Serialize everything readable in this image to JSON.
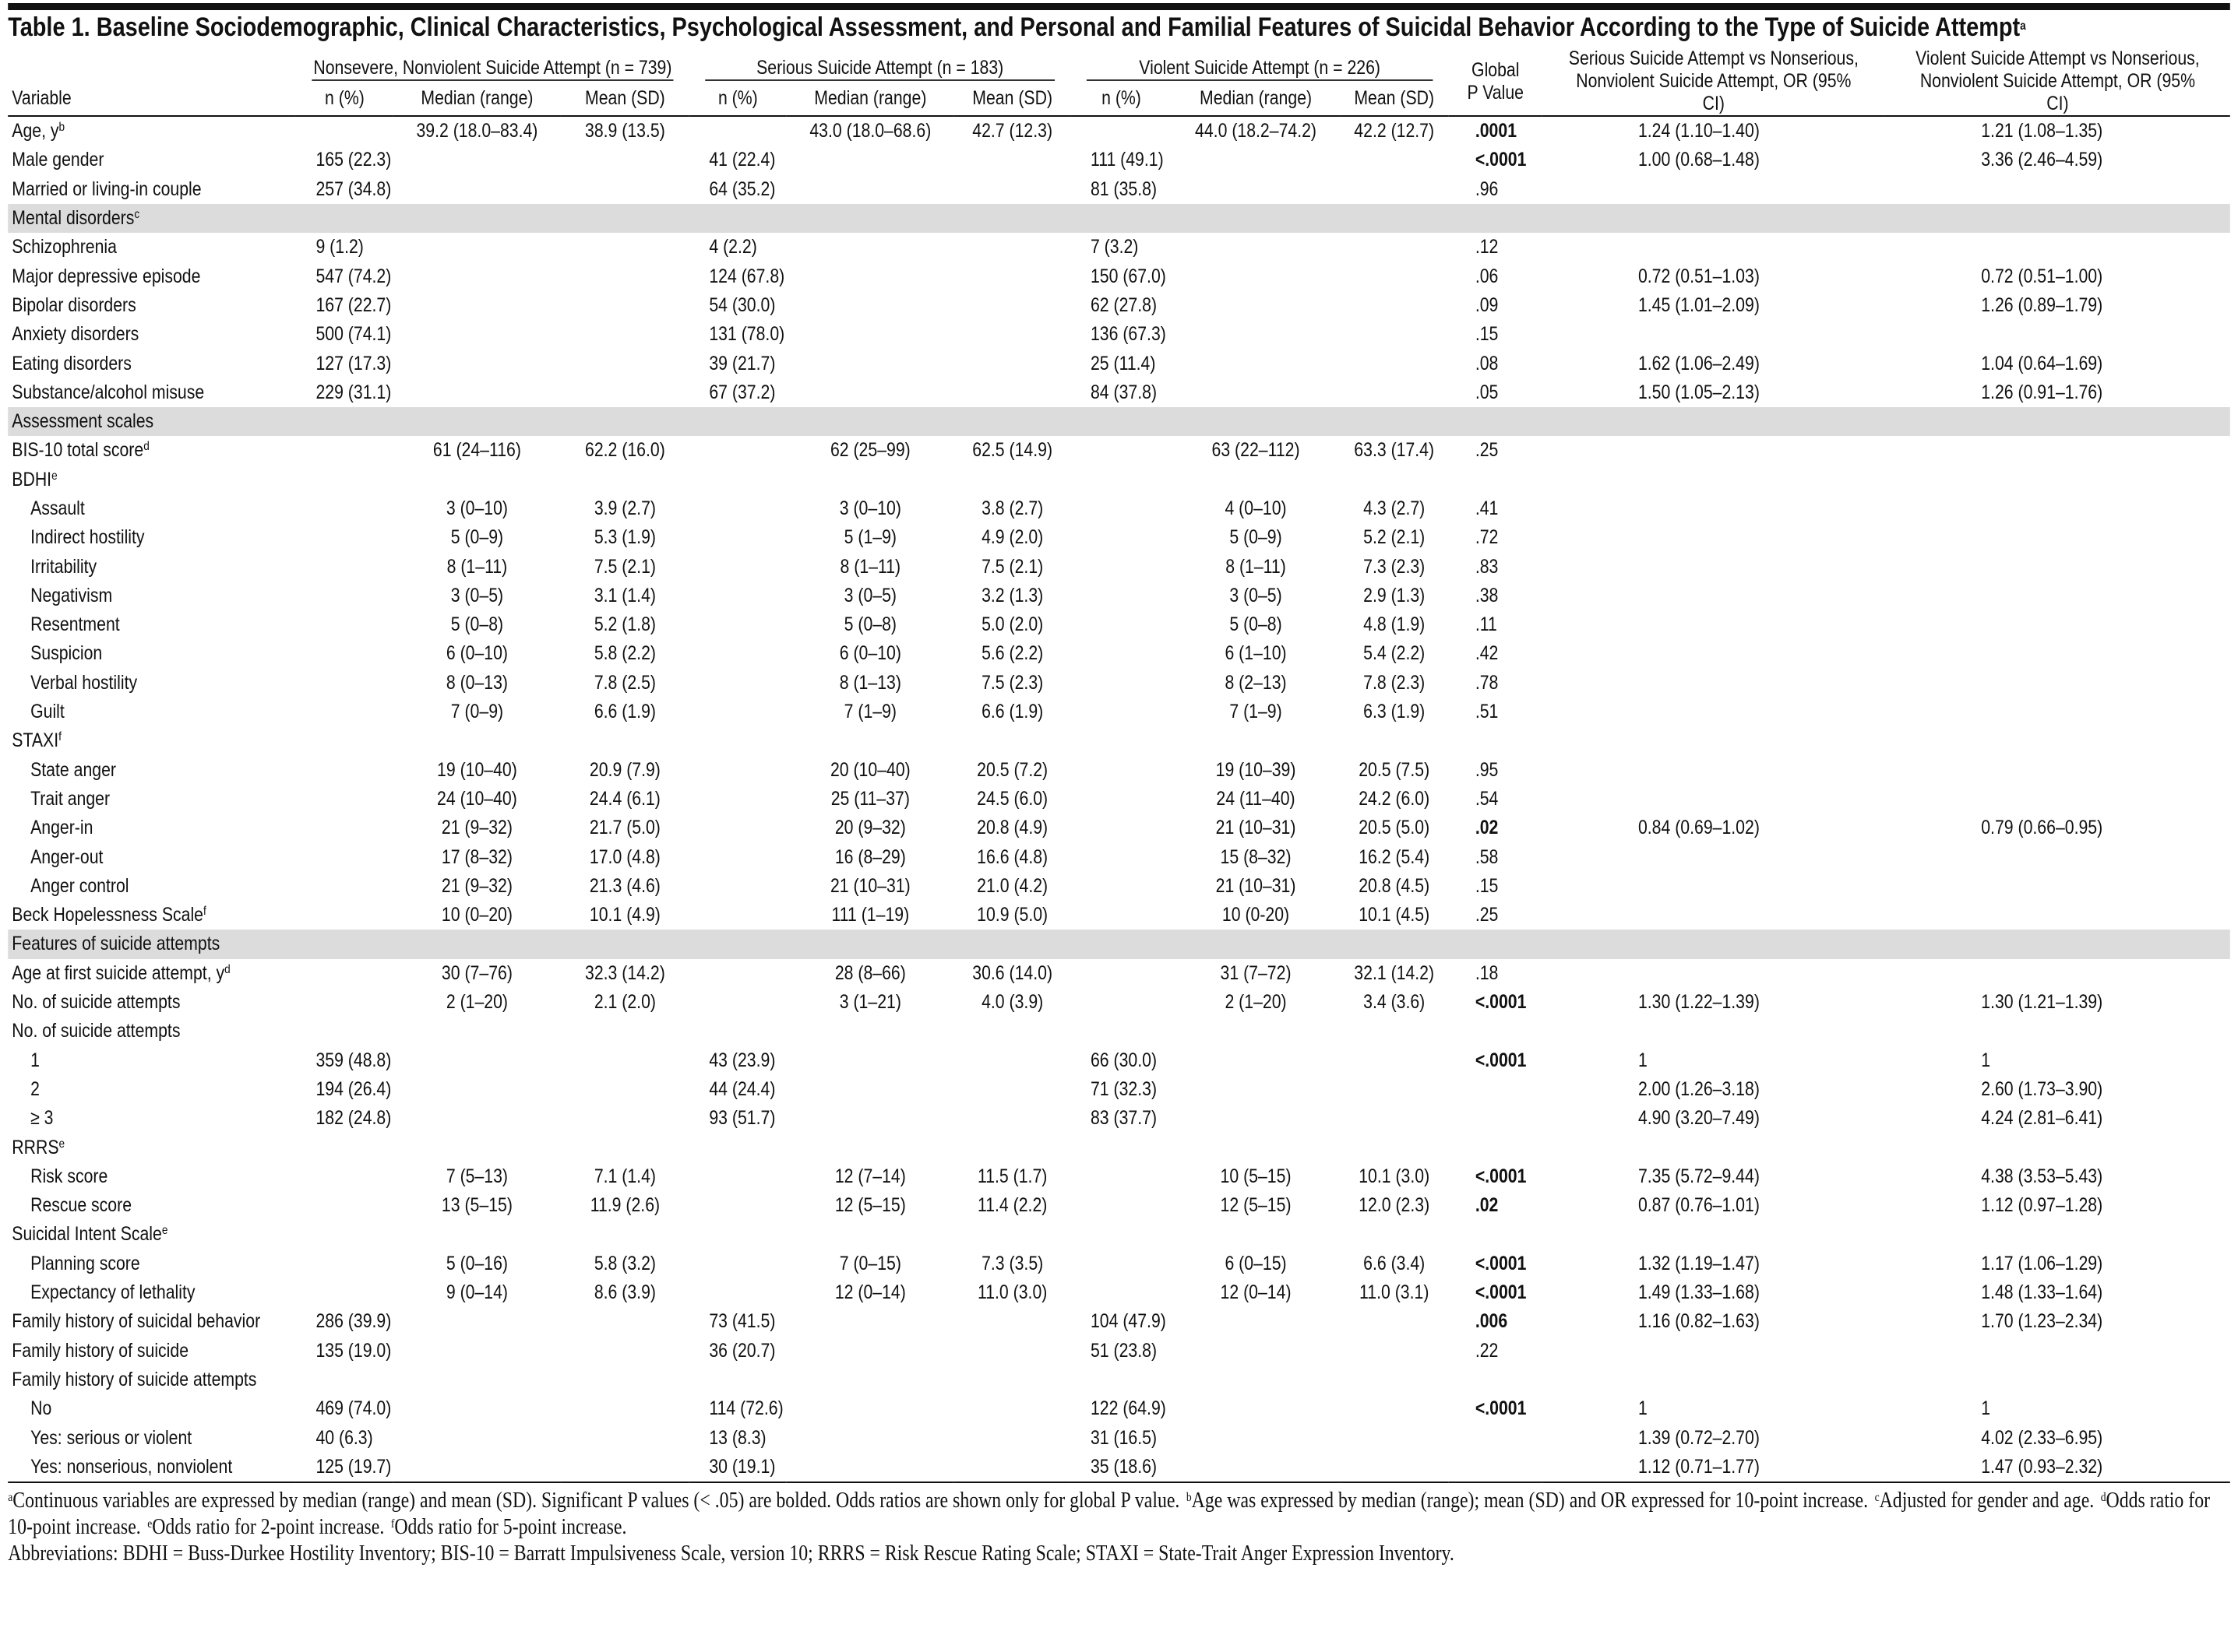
{
  "title": "Table 1. Baseline Sociodemographic, Clinical Characteristics, Psychological Assessment, and Personal and Familial Features of Suicidal Behavior According to the Type of Suicide Attempt",
  "title_note": "a",
  "table": {
    "variable_header": "Variable",
    "groups": [
      {
        "name": "Nonsevere, Nonviolent Suicide Attempt (n = 739)",
        "columns": [
          "n (%)",
          "Median (range)",
          "Mean (SD)"
        ]
      },
      {
        "name": "Serious Suicide Attempt (n = 183)",
        "columns": [
          "n (%)",
          "Median (range)",
          "Mean (SD)"
        ]
      },
      {
        "name": "Violent Suicide Attempt (n = 226)",
        "columns": [
          "n (%)",
          "Median (range)",
          "Mean (SD)"
        ]
      }
    ],
    "p_header": "Global P Value",
    "or_headers": [
      "Serious Suicide Attempt vs Nonserious, Nonviolent Suicide Attempt, OR (95% CI)",
      "Violent Suicide Attempt vs Nonserious, Nonviolent Suicide Attempt, OR (95% CI)"
    ],
    "rows": [
      {
        "label": "Age, y",
        "note": "b",
        "p_bold": true,
        "cells": [
          null,
          "39.2 (18.0–83.4)",
          "38.9 (13.5)",
          null,
          "43.0 (18.0–68.6)",
          "42.7 (12.3)",
          null,
          "44.0 (18.2–74.2)",
          "42.2 (12.7)",
          ".0001",
          "1.24 (1.10–1.40)",
          "1.21 (1.08–1.35)"
        ]
      },
      {
        "label": "Male gender",
        "p_bold": true,
        "cells": [
          "165 (22.3)",
          null,
          null,
          "41 (22.4)",
          null,
          null,
          "111 (49.1)",
          null,
          null,
          "<.0001",
          "1.00 (0.68–1.48)",
          "3.36 (2.46–4.59)"
        ]
      },
      {
        "label": "Married or living-in couple",
        "cells": [
          "257 (34.8)",
          null,
          null,
          "64 (35.2)",
          null,
          null,
          "81 (35.8)",
          null,
          null,
          ".96",
          null,
          null
        ]
      },
      {
        "label": "Mental disorders",
        "note": "c",
        "kind": "section"
      },
      {
        "label": "Schizophrenia",
        "cells": [
          "9 (1.2)",
          null,
          null,
          "4 (2.2)",
          null,
          null,
          "7 (3.2)",
          null,
          null,
          ".12",
          null,
          null
        ]
      },
      {
        "label": "Major depressive episode",
        "cells": [
          "547 (74.2)",
          null,
          null,
          "124 (67.8)",
          null,
          null,
          "150 (67.0)",
          null,
          null,
          ".06",
          "0.72 (0.51–1.03)",
          "0.72 (0.51–1.00)"
        ]
      },
      {
        "label": "Bipolar disorders",
        "cells": [
          "167 (22.7)",
          null,
          null,
          "54 (30.0)",
          null,
          null,
          "62 (27.8)",
          null,
          null,
          ".09",
          "1.45 (1.01–2.09)",
          "1.26 (0.89–1.79)"
        ]
      },
      {
        "label": "Anxiety disorders",
        "cells": [
          "500 (74.1)",
          null,
          null,
          "131 (78.0)",
          null,
          null,
          "136 (67.3)",
          null,
          null,
          ".15",
          null,
          null
        ]
      },
      {
        "label": "Eating disorders",
        "cells": [
          "127 (17.3)",
          null,
          null,
          "39 (21.7)",
          null,
          null,
          "25 (11.4)",
          null,
          null,
          ".08",
          "1.62 (1.06–2.49)",
          "1.04 (0.64–1.69)"
        ]
      },
      {
        "label": "Substance/alcohol misuse",
        "cells": [
          "229 (31.1)",
          null,
          null,
          "67 (37.2)",
          null,
          null,
          "84 (37.8)",
          null,
          null,
          ".05",
          "1.50 (1.05–2.13)",
          "1.26 (0.91–1.76)"
        ]
      },
      {
        "label": "Assessment scales",
        "kind": "section"
      },
      {
        "label": "BIS-10 total score",
        "note": "d",
        "cells": [
          null,
          "61 (24–116)",
          "62.2 (16.0)",
          null,
          "62 (25–99)",
          "62.5 (14.9)",
          null,
          "63 (22–112)",
          "63.3 (17.4)",
          ".25",
          null,
          null
        ]
      },
      {
        "label": "BDHI",
        "note": "e"
      },
      {
        "label": "Assault",
        "kind": "indent",
        "cells": [
          null,
          "3 (0–10)",
          "3.9 (2.7)",
          null,
          "3 (0–10)",
          "3.8 (2.7)",
          null,
          "4 (0–10)",
          "4.3 (2.7)",
          ".41",
          null,
          null
        ]
      },
      {
        "label": "Indirect hostility",
        "kind": "indent",
        "cells": [
          null,
          "5 (0–9)",
          "5.3 (1.9)",
          null,
          "5 (1–9)",
          "4.9 (2.0)",
          null,
          "5 (0–9)",
          "5.2 (2.1)",
          ".72",
          null,
          null
        ]
      },
      {
        "label": "Irritability",
        "kind": "indent",
        "cells": [
          null,
          "8 (1–11)",
          "7.5 (2.1)",
          null,
          "8 (1–11)",
          "7.5 (2.1)",
          null,
          "8 (1–11)",
          "7.3 (2.3)",
          ".83",
          null,
          null
        ]
      },
      {
        "label": "Negativism",
        "kind": "indent",
        "cells": [
          null,
          "3 (0–5)",
          "3.1 (1.4)",
          null,
          "3 (0–5)",
          "3.2 (1.3)",
          null,
          "3 (0–5)",
          "2.9 (1.3)",
          ".38",
          null,
          null
        ]
      },
      {
        "label": "Resentment",
        "kind": "indent",
        "cells": [
          null,
          "5 (0–8)",
          "5.2 (1.8)",
          null,
          "5 (0–8)",
          "5.0 (2.0)",
          null,
          "5 (0–8)",
          "4.8 (1.9)",
          ".11",
          null,
          null
        ]
      },
      {
        "label": "Suspicion",
        "kind": "indent",
        "cells": [
          null,
          "6 (0–10)",
          "5.8 (2.2)",
          null,
          "6 (0–10)",
          "5.6 (2.2)",
          null,
          "6 (1–10)",
          "5.4 (2.2)",
          ".42",
          null,
          null
        ]
      },
      {
        "label": "Verbal hostility",
        "kind": "indent",
        "cells": [
          null,
          "8 (0–13)",
          "7.8 (2.5)",
          null,
          "8 (1–13)",
          "7.5 (2.3)",
          null,
          "8 (2–13)",
          "7.8 (2.3)",
          ".78",
          null,
          null
        ]
      },
      {
        "label": "Guilt",
        "kind": "indent",
        "cells": [
          null,
          "7 (0–9)",
          "6.6 (1.9)",
          null,
          "7 (1–9)",
          "6.6 (1.9)",
          null,
          "7 (1–9)",
          "6.3 (1.9)",
          ".51",
          null,
          null
        ]
      },
      {
        "label": "STAXI",
        "note": "f"
      },
      {
        "label": "State anger",
        "kind": "indent",
        "cells": [
          null,
          "19 (10–40)",
          "20.9 (7.9)",
          null,
          "20 (10–40)",
          "20.5 (7.2)",
          null,
          "19 (10–39)",
          "20.5 (7.5)",
          ".95",
          null,
          null
        ]
      },
      {
        "label": "Trait anger",
        "kind": "indent",
        "cells": [
          null,
          "24 (10–40)",
          "24.4 (6.1)",
          null,
          "25 (11–37)",
          "24.5 (6.0)",
          null,
          "24 (11–40)",
          "24.2 (6.0)",
          ".54",
          null,
          null
        ]
      },
      {
        "label": "Anger-in",
        "kind": "indent",
        "p_bold": true,
        "cells": [
          null,
          "21 (9–32)",
          "21.7 (5.0)",
          null,
          "20 (9–32)",
          "20.8 (4.9)",
          null,
          "21 (10–31)",
          "20.5 (5.0)",
          ".02",
          "0.84 (0.69–1.02)",
          "0.79 (0.66–0.95)"
        ]
      },
      {
        "label": "Anger-out",
        "kind": "indent",
        "cells": [
          null,
          "17 (8–32)",
          "17.0 (4.8)",
          null,
          "16 (8–29)",
          "16.6 (4.8)",
          null,
          "15 (8–32)",
          "16.2 (5.4)",
          ".58",
          null,
          null
        ]
      },
      {
        "label": "Anger control",
        "kind": "indent",
        "cells": [
          null,
          "21 (9–32)",
          "21.3 (4.6)",
          null,
          "21 (10–31)",
          "21.0 (4.2)",
          null,
          "21 (10–31)",
          "20.8 (4.5)",
          ".15",
          null,
          null
        ]
      },
      {
        "label": "Beck Hopelessness Scale",
        "note": "f",
        "cells": [
          null,
          "10 (0–20)",
          "10.1 (4.9)",
          null,
          "111 (1–19)",
          "10.9 (5.0)",
          null,
          "10 (0-20)",
          "10.1 (4.5)",
          ".25",
          null,
          null
        ]
      },
      {
        "label": "Features of suicide attempts",
        "kind": "section"
      },
      {
        "label": "Age at first suicide attempt, y",
        "note": "d",
        "cells": [
          null,
          "30 (7–76)",
          "32.3 (14.2)",
          null,
          "28 (8–66)",
          "30.6 (14.0)",
          null,
          "31 (7–72)",
          "32.1 (14.2)",
          ".18",
          null,
          null
        ]
      },
      {
        "label": "No. of suicide attempts",
        "p_bold": true,
        "cells": [
          null,
          "2 (1–20)",
          "2.1 (2.0)",
          null,
          "3 (1–21)",
          "4.0 (3.9)",
          null,
          "2 (1–20)",
          "3.4 (3.6)",
          "<.0001",
          "1.30 (1.22–1.39)",
          "1.30 (1.21–1.39)"
        ]
      },
      {
        "label": "No. of suicide attempts"
      },
      {
        "label": "1",
        "kind": "indent",
        "p_bold": true,
        "cells": [
          "359 (48.8)",
          null,
          null,
          "43 (23.9)",
          null,
          null,
          "66 (30.0)",
          null,
          null,
          "<.0001",
          "1",
          "1"
        ]
      },
      {
        "label": "2",
        "kind": "indent",
        "cells": [
          "194 (26.4)",
          null,
          null,
          "44 (24.4)",
          null,
          null,
          "71 (32.3)",
          null,
          null,
          null,
          "2.00 (1.26–3.18)",
          "2.60 (1.73–3.90)"
        ]
      },
      {
        "label": "≥ 3",
        "kind": "indent",
        "cells": [
          "182 (24.8)",
          null,
          null,
          "93 (51.7)",
          null,
          null,
          "83 (37.7)",
          null,
          null,
          null,
          "4.90 (3.20–7.49)",
          "4.24 (2.81–6.41)"
        ]
      },
      {
        "label": "RRRS",
        "note": "e"
      },
      {
        "label": "Risk score",
        "kind": "indent",
        "p_bold": true,
        "cells": [
          null,
          "7 (5–13)",
          "7.1 (1.4)",
          null,
          "12 (7–14)",
          "11.5 (1.7)",
          null,
          "10 (5–15)",
          "10.1 (3.0)",
          "<.0001",
          "7.35 (5.72–9.44)",
          "4.38 (3.53–5.43)"
        ]
      },
      {
        "label": "Rescue score",
        "kind": "indent",
        "p_bold": true,
        "cells": [
          null,
          "13 (5–15)",
          "11.9 (2.6)",
          null,
          "12 (5–15)",
          "11.4 (2.2)",
          null,
          "12 (5–15)",
          "12.0 (2.3)",
          ".02",
          "0.87 (0.76–1.01)",
          "1.12 (0.97–1.28)"
        ]
      },
      {
        "label": "Suicidal Intent Scale",
        "note": "e"
      },
      {
        "label": "Planning score",
        "kind": "indent",
        "p_bold": true,
        "cells": [
          null,
          "5 (0–16)",
          "5.8 (3.2)",
          null,
          "7 (0–15)",
          "7.3 (3.5)",
          null,
          "6 (0–15)",
          "6.6 (3.4)",
          "<.0001",
          "1.32 (1.19–1.47)",
          "1.17 (1.06–1.29)"
        ]
      },
      {
        "label": "Expectancy of lethality",
        "kind": "indent",
        "p_bold": true,
        "cells": [
          null,
          "9 (0–14)",
          "8.6 (3.9)",
          null,
          "12 (0–14)",
          "11.0 (3.0)",
          null,
          "12 (0–14)",
          "11.0 (3.1)",
          "<.0001",
          "1.49 (1.33–1.68)",
          "1.48 (1.33–1.64)"
        ]
      },
      {
        "label": "Family history of suicidal behavior",
        "p_bold": true,
        "cells": [
          "286 (39.9)",
          null,
          null,
          "73 (41.5)",
          null,
          null,
          "104 (47.9)",
          null,
          null,
          ".006",
          "1.16 (0.82–1.63)",
          "1.70 (1.23–2.34)"
        ]
      },
      {
        "label": "Family history of suicide",
        "cells": [
          "135 (19.0)",
          null,
          null,
          "36 (20.7)",
          null,
          null,
          "51 (23.8)",
          null,
          null,
          ".22",
          null,
          null
        ]
      },
      {
        "label": "Family history of suicide attempts"
      },
      {
        "label": "No",
        "kind": "indent",
        "p_bold": true,
        "cells": [
          "469 (74.0)",
          null,
          null,
          "114 (72.6)",
          null,
          null,
          "122 (64.9)",
          null,
          null,
          "<.0001",
          "1",
          "1"
        ]
      },
      {
        "label": "Yes: serious or violent",
        "kind": "indent",
        "cells": [
          "40 (6.3)",
          null,
          null,
          "13 (8.3)",
          null,
          null,
          "31 (16.5)",
          null,
          null,
          null,
          "1.39 (0.72–2.70)",
          "4.02 (2.33–6.95)"
        ]
      },
      {
        "label": "Yes: nonserious, nonviolent",
        "kind": "indent",
        "cells": [
          "125 (19.7)",
          null,
          null,
          "30 (19.1)",
          null,
          null,
          "35 (18.6)",
          null,
          null,
          null,
          "1.12 (0.71–1.77)",
          "1.47 (0.93–2.32)"
        ]
      }
    ]
  },
  "footnotes": [
    {
      "mark": "a",
      "text": "Continuous variables are expressed by median (range) and mean (SD). Significant P values (< .05) are bolded. Odds ratios are shown only for global P value."
    },
    {
      "mark": "b",
      "text": "Age was expressed by median (range); mean (SD) and OR expressed for 10-point increase."
    },
    {
      "mark": "c",
      "text": "Adjusted for gender and age."
    },
    {
      "mark": "d",
      "text": "Odds ratio for 10-point increase."
    },
    {
      "mark": "e",
      "text": "Odds ratio for 2-point increase."
    },
    {
      "mark": "f",
      "text": "Odds ratio for 5-point increase."
    }
  ],
  "abbreviations": "Abbreviations: BDHI = Buss-Durkee Hostility Inventory; BIS-10 = Barratt Impulsiveness Scale, version 10; RRRS = Risk Rescue Rating Scale; STAXI = State-Trait Anger Expression Inventory."
}
